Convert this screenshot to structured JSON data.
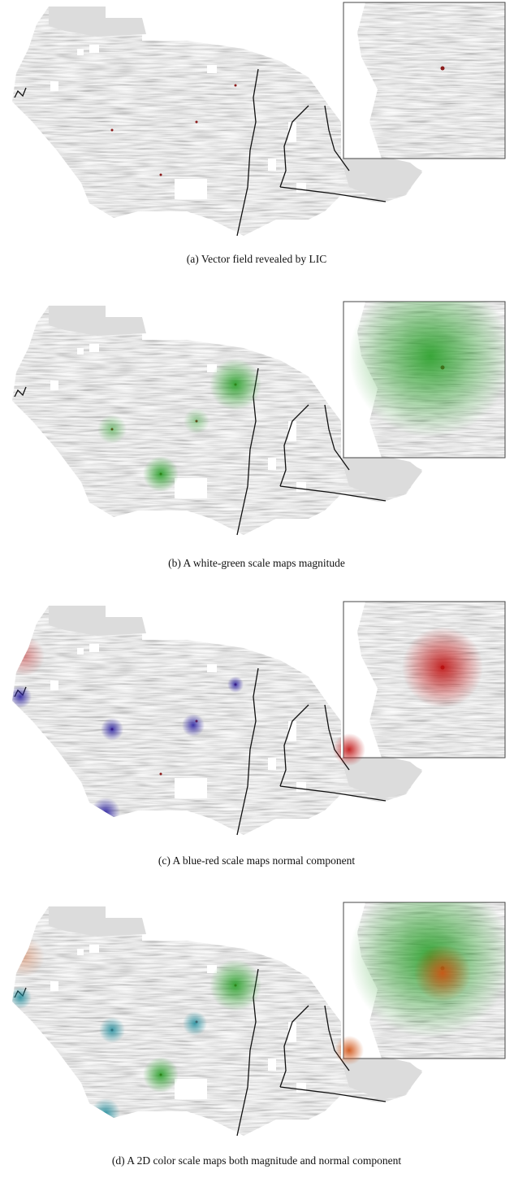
{
  "figure": {
    "panels": [
      {
        "caption": "(a) Vector field revealed by LIC"
      },
      {
        "caption": "(b) A white-green scale maps magnitude"
      },
      {
        "caption": "(c) A blue-red scale maps normal component"
      },
      {
        "caption": "(d) A 2D color scale maps both magnitude and normal component"
      }
    ]
  }
}
